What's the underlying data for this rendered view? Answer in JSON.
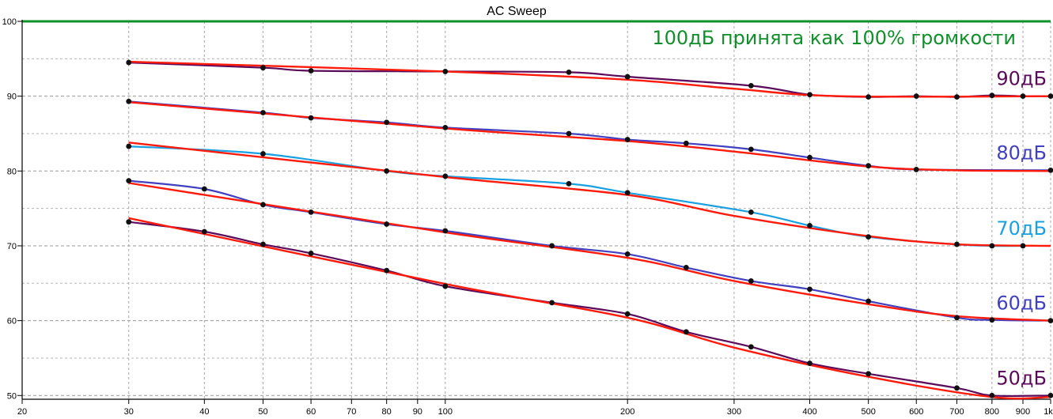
{
  "chart_data": {
    "type": "line",
    "title": "AC Sweep",
    "annotation": "100дБ принята как 100% громкости",
    "annotation_color": "#10902a",
    "reference_line": {
      "y": 100,
      "color": "#10902a"
    },
    "xscale": "log",
    "xlim": [
      20,
      1000
    ],
    "ylim": [
      49.5,
      100
    ],
    "x_ticks": [
      20,
      30,
      40,
      50,
      60,
      70,
      80,
      90,
      100,
      200,
      300,
      400,
      500,
      600,
      700,
      800,
      900,
      1000
    ],
    "x_tick_labels": [
      "20",
      "30",
      "40",
      "50",
      "60",
      "70",
      "80",
      "90",
      "100",
      "200",
      "300",
      "400",
      "500",
      "600",
      "700",
      "800",
      "900",
      "1k"
    ],
    "y_ticks": [
      50,
      60,
      70,
      80,
      90,
      100
    ],
    "y_tick_labels": [
      "50",
      "60",
      "70",
      "80",
      "90",
      "100"
    ],
    "grid": true,
    "fit_color": "#ff1a0a",
    "series": [
      {
        "name": "90дБ",
        "label": "90дБ",
        "color": "#5a0a5a",
        "x": [
          30,
          50,
          60,
          100,
          160,
          200,
          320,
          400,
          500,
          600,
          700,
          800,
          900,
          1000
        ],
        "y": [
          94.5,
          93.8,
          93.4,
          93.3,
          93.2,
          92.6,
          91.4,
          90.2,
          89.9,
          90.0,
          89.9,
          90.1,
          90.0,
          90.0
        ],
        "fit": [
          [
            30,
            94.6
          ],
          [
            100,
            93.3
          ],
          [
            200,
            92.2
          ],
          [
            300,
            91.0
          ],
          [
            450,
            90.0
          ],
          [
            1000,
            90.0
          ]
        ]
      },
      {
        "name": "80дБ",
        "label": "80дБ",
        "color": "#4040c0",
        "x": [
          30,
          50,
          60,
          80,
          100,
          160,
          200,
          250,
          320,
          400,
          500,
          600,
          1000
        ],
        "y": [
          89.3,
          87.8,
          87.1,
          86.5,
          85.8,
          85.0,
          84.2,
          83.7,
          82.9,
          81.8,
          80.7,
          80.2,
          80.1
        ],
        "fit": [
          [
            30,
            89.2
          ],
          [
            100,
            85.7
          ],
          [
            200,
            84.0
          ],
          [
            300,
            82.6
          ],
          [
            500,
            80.6
          ],
          [
            700,
            80.1
          ],
          [
            1000,
            80.0
          ]
        ]
      },
      {
        "name": "70дБ",
        "label": "70дБ",
        "color": "#1aa0e0",
        "x": [
          30,
          50,
          80,
          100,
          160,
          200,
          320,
          400,
          500,
          700,
          800,
          900
        ],
        "y": [
          83.3,
          82.3,
          80.0,
          79.3,
          78.3,
          77.1,
          74.5,
          72.7,
          71.2,
          70.2,
          70.0,
          70.0
        ],
        "fit": [
          [
            30,
            83.8
          ],
          [
            100,
            79.2
          ],
          [
            200,
            76.8
          ],
          [
            300,
            74.0
          ],
          [
            500,
            71.3
          ],
          [
            700,
            70.2
          ],
          [
            1000,
            70.0
          ]
        ]
      },
      {
        "name": "60дБ",
        "label": "60дБ",
        "color": "#4040c0",
        "x": [
          30,
          40,
          50,
          60,
          80,
          100,
          150,
          200,
          250,
          320,
          400,
          500,
          700,
          800,
          1000
        ],
        "y": [
          78.7,
          77.6,
          75.5,
          74.5,
          72.9,
          72.0,
          70.0,
          68.9,
          67.1,
          65.3,
          64.2,
          62.6,
          60.4,
          60.1,
          60.0
        ],
        "fit": [
          [
            30,
            78.4
          ],
          [
            100,
            71.8
          ],
          [
            200,
            68.4
          ],
          [
            300,
            65.3
          ],
          [
            500,
            62.2
          ],
          [
            700,
            60.6
          ],
          [
            1000,
            60.0
          ]
        ]
      },
      {
        "name": "50дБ",
        "label": "50дБ",
        "color": "#5a0a5a",
        "x": [
          30,
          40,
          50,
          60,
          80,
          100,
          150,
          200,
          250,
          320,
          400,
          500,
          700,
          800,
          1000
        ],
        "y": [
          73.2,
          71.9,
          70.2,
          69.0,
          66.7,
          64.6,
          62.4,
          60.9,
          58.5,
          56.5,
          54.3,
          52.9,
          51.0,
          50.0,
          50.0
        ],
        "fit": [
          [
            30,
            73.7
          ],
          [
            100,
            64.9
          ],
          [
            200,
            60.4
          ],
          [
            300,
            56.4
          ],
          [
            500,
            52.5
          ],
          [
            800,
            49.8
          ],
          [
            1000,
            49.8
          ]
        ]
      }
    ]
  }
}
